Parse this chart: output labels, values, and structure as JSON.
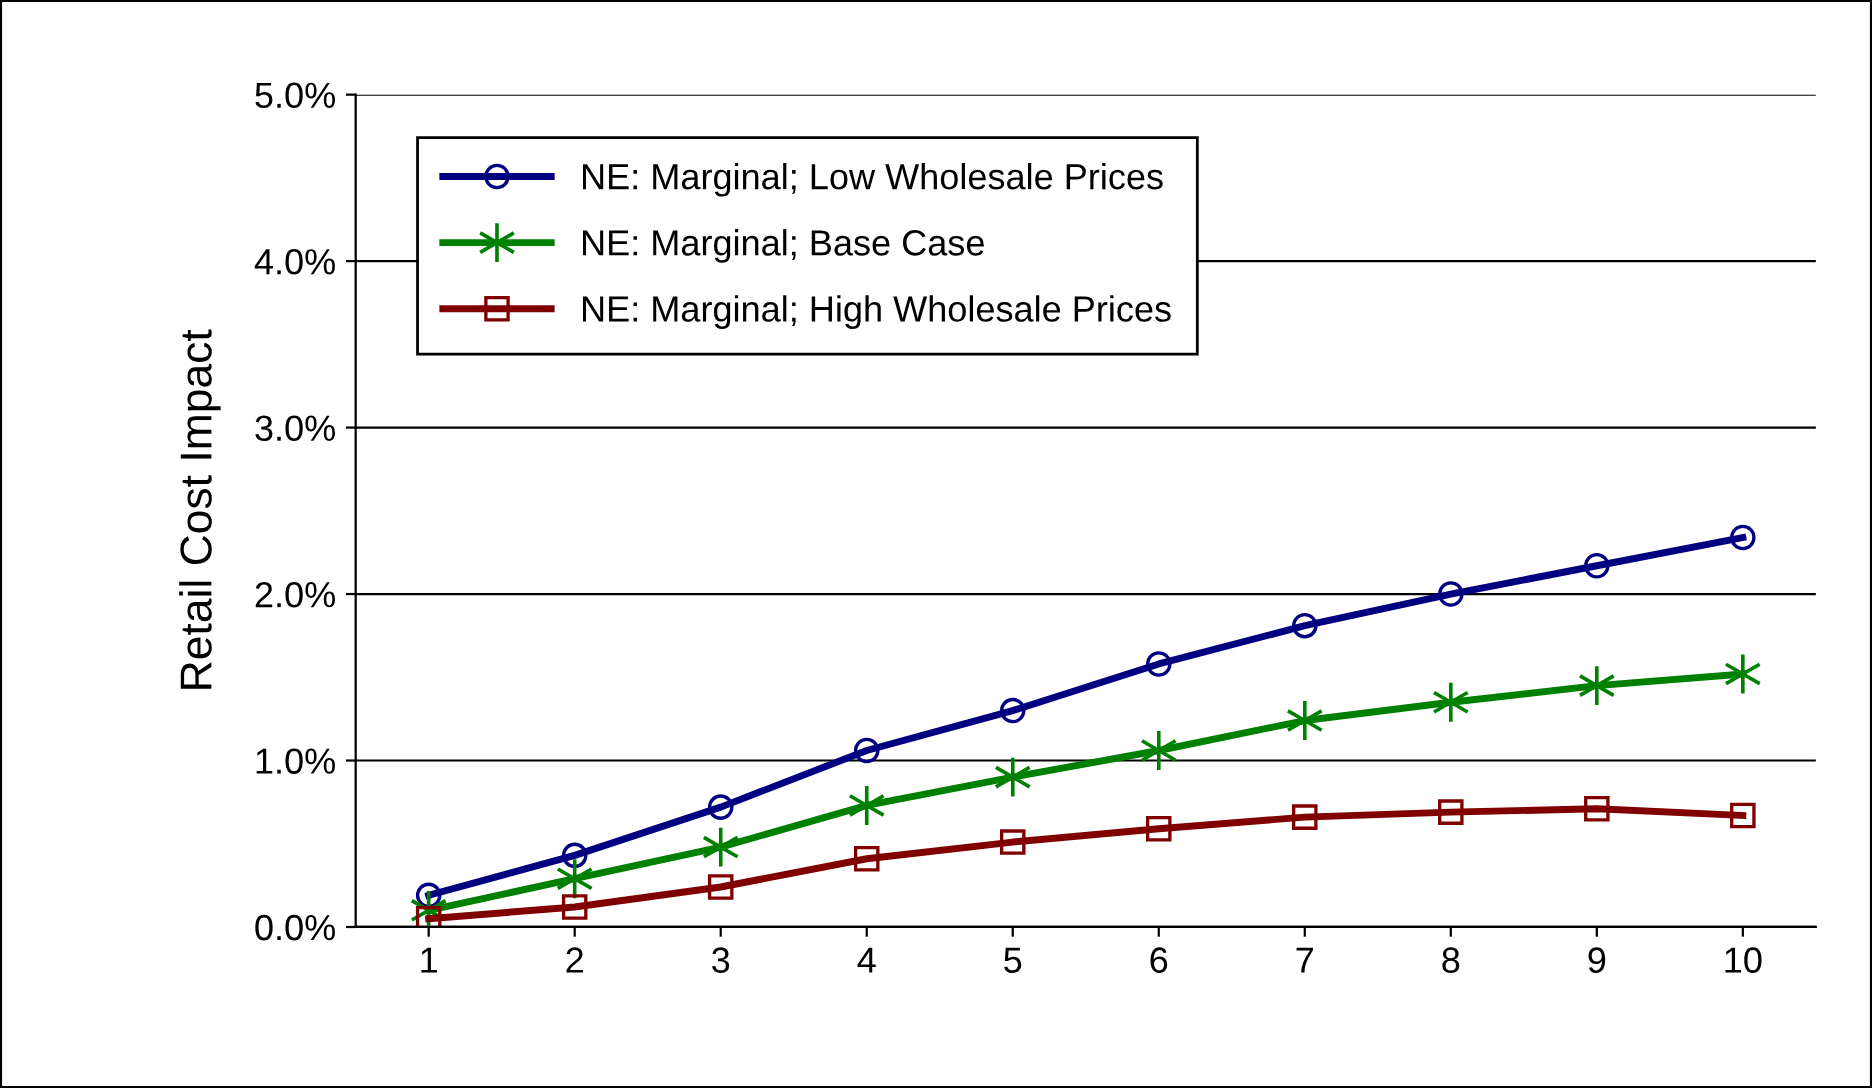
{
  "chart_data": {
    "type": "line",
    "ylabel": "Retail Cost Impact",
    "categories": [
      "1",
      "2",
      "3",
      "4",
      "5",
      "6",
      "7",
      "8",
      "9",
      "10"
    ],
    "series": [
      {
        "name": "NE: Marginal; Low Wholesale Prices",
        "color": "#000080",
        "marker": "circle",
        "values": [
          0.19,
          0.43,
          0.72,
          1.06,
          1.3,
          1.58,
          1.81,
          2.0,
          2.17,
          2.34
        ]
      },
      {
        "name": "NE: Marginal; Base Case",
        "color": "#008000",
        "marker": "cross",
        "values": [
          0.1,
          0.29,
          0.48,
          0.73,
          0.9,
          1.06,
          1.24,
          1.35,
          1.45,
          1.52
        ]
      },
      {
        "name": "NE: Marginal; High Wholesale Prices",
        "color": "#800000",
        "marker": "square",
        "values": [
          0.05,
          0.12,
          0.24,
          0.41,
          0.51,
          0.59,
          0.66,
          0.69,
          0.71,
          0.67
        ]
      }
    ],
    "ylim": [
      0,
      5
    ],
    "yticks": [
      {
        "value": 0,
        "label": "0.0%"
      },
      {
        "value": 1,
        "label": "1.0%"
      },
      {
        "value": 2,
        "label": "2.0%"
      },
      {
        "value": 3,
        "label": "3.0%"
      },
      {
        "value": 4,
        "label": "4.0%"
      },
      {
        "value": 5,
        "label": "5.0%"
      }
    ],
    "grid": "y",
    "legend": "top left",
    "line_style": "solid"
  }
}
